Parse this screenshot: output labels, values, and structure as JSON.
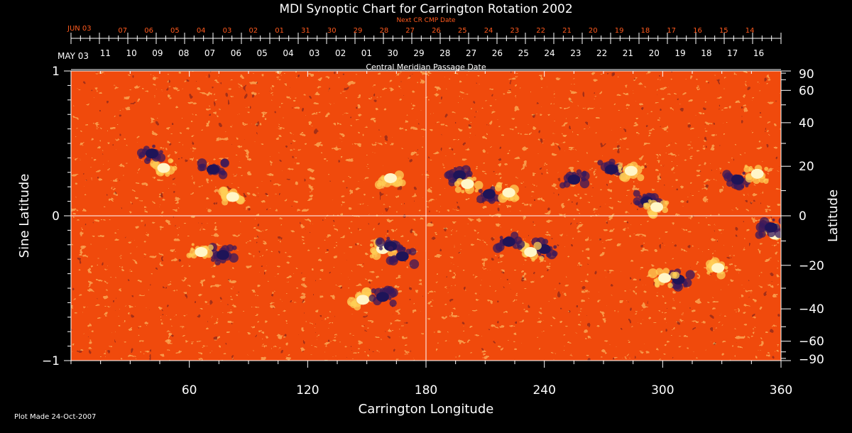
{
  "chart_data": {
    "type": "heatmap",
    "title": "MDI Synoptic Chart for Carrington Rotation 2002",
    "xlabel": "Carrington Longitude",
    "ylabel_left": "Sine Latitude",
    "ylabel_right": "Latitude",
    "xlim": [
      0,
      360
    ],
    "ylim": [
      -1,
      1
    ],
    "x_ticks": [
      60,
      120,
      180,
      240,
      300,
      360
    ],
    "y_left_ticks": [
      {
        "v": 1,
        "label": "1"
      },
      {
        "v": 0,
        "label": "0"
      },
      {
        "v": -1,
        "label": "−1"
      }
    ],
    "y_right_ticks": [
      90,
      60,
      40,
      20,
      0,
      -20,
      -40,
      -60,
      -90
    ],
    "central_meridian_longitude": 180,
    "equator_sine_latitude": 0,
    "top_axis": {
      "label": "Central Meridian Passage Date",
      "start_label": "MAY 03",
      "dates": [
        "11",
        "10",
        "09",
        "08",
        "07",
        "06",
        "05",
        "04",
        "03",
        "02",
        "01",
        "30",
        "29",
        "28",
        "27",
        "26",
        "25",
        "24",
        "23",
        "22",
        "21",
        "20",
        "19",
        "18",
        "17",
        "16"
      ],
      "x_start": 17.4,
      "x_step": 13.25
    },
    "next_axis": {
      "label": "Next CR CMP Date",
      "start_label": "JUN 03",
      "dates": [
        "07",
        "06",
        "05",
        "04",
        "03",
        "02",
        "01",
        "31",
        "30",
        "29",
        "28",
        "27",
        "26",
        "25",
        "24",
        "23",
        "22",
        "21",
        "20",
        "19",
        "18",
        "17",
        "16",
        "15",
        "14"
      ],
      "x_start": 26.2,
      "x_step": 13.25
    },
    "colors": {
      "background": "#f04a0c",
      "positive_polarity": "#fff6c8",
      "negative_polarity": "#1e1458",
      "axis": "#ffffff",
      "next_axis": "#ff5a1e"
    },
    "active_regions": [
      {
        "lon": 47,
        "slat": 0.33,
        "polarity": "positive"
      },
      {
        "lon": 41,
        "slat": 0.43,
        "polarity": "negative"
      },
      {
        "lon": 72,
        "slat": 0.32,
        "polarity": "negative"
      },
      {
        "lon": 82,
        "slat": 0.13,
        "polarity": "positive"
      },
      {
        "lon": 158,
        "slat": -0.23,
        "polarity": "positive"
      },
      {
        "lon": 162,
        "slat": -0.21,
        "polarity": "negative"
      },
      {
        "lon": 168,
        "slat": -0.28,
        "polarity": "negative"
      },
      {
        "lon": 148,
        "slat": -0.58,
        "polarity": "positive"
      },
      {
        "lon": 158,
        "slat": -0.56,
        "polarity": "negative"
      },
      {
        "lon": 162,
        "slat": 0.26,
        "polarity": "positive"
      },
      {
        "lon": 197,
        "slat": 0.28,
        "polarity": "negative"
      },
      {
        "lon": 201,
        "slat": 0.22,
        "polarity": "positive"
      },
      {
        "lon": 212,
        "slat": 0.15,
        "polarity": "negative"
      },
      {
        "lon": 222,
        "slat": 0.16,
        "polarity": "positive"
      },
      {
        "lon": 240,
        "slat": -0.23,
        "polarity": "negative"
      },
      {
        "lon": 233,
        "slat": -0.25,
        "polarity": "positive"
      },
      {
        "lon": 222,
        "slat": -0.18,
        "polarity": "negative"
      },
      {
        "lon": 255,
        "slat": 0.25,
        "polarity": "negative"
      },
      {
        "lon": 274,
        "slat": 0.32,
        "polarity": "negative"
      },
      {
        "lon": 284,
        "slat": 0.31,
        "polarity": "positive"
      },
      {
        "lon": 292,
        "slat": 0.1,
        "polarity": "negative"
      },
      {
        "lon": 297,
        "slat": 0.06,
        "polarity": "positive"
      },
      {
        "lon": 308,
        "slat": -0.44,
        "polarity": "negative"
      },
      {
        "lon": 301,
        "slat": -0.43,
        "polarity": "positive"
      },
      {
        "lon": 328,
        "slat": -0.36,
        "polarity": "positive"
      },
      {
        "lon": 338,
        "slat": 0.25,
        "polarity": "negative"
      },
      {
        "lon": 348,
        "slat": 0.29,
        "polarity": "positive"
      },
      {
        "lon": 357,
        "slat": -0.13,
        "polarity": "positive"
      },
      {
        "lon": 355,
        "slat": -0.08,
        "polarity": "negative"
      },
      {
        "lon": 77,
        "slat": -0.27,
        "polarity": "negative"
      },
      {
        "lon": 66,
        "slat": -0.25,
        "polarity": "positive"
      }
    ]
  },
  "footer": {
    "plot_made": "Plot Made 24-Oct-2007"
  }
}
